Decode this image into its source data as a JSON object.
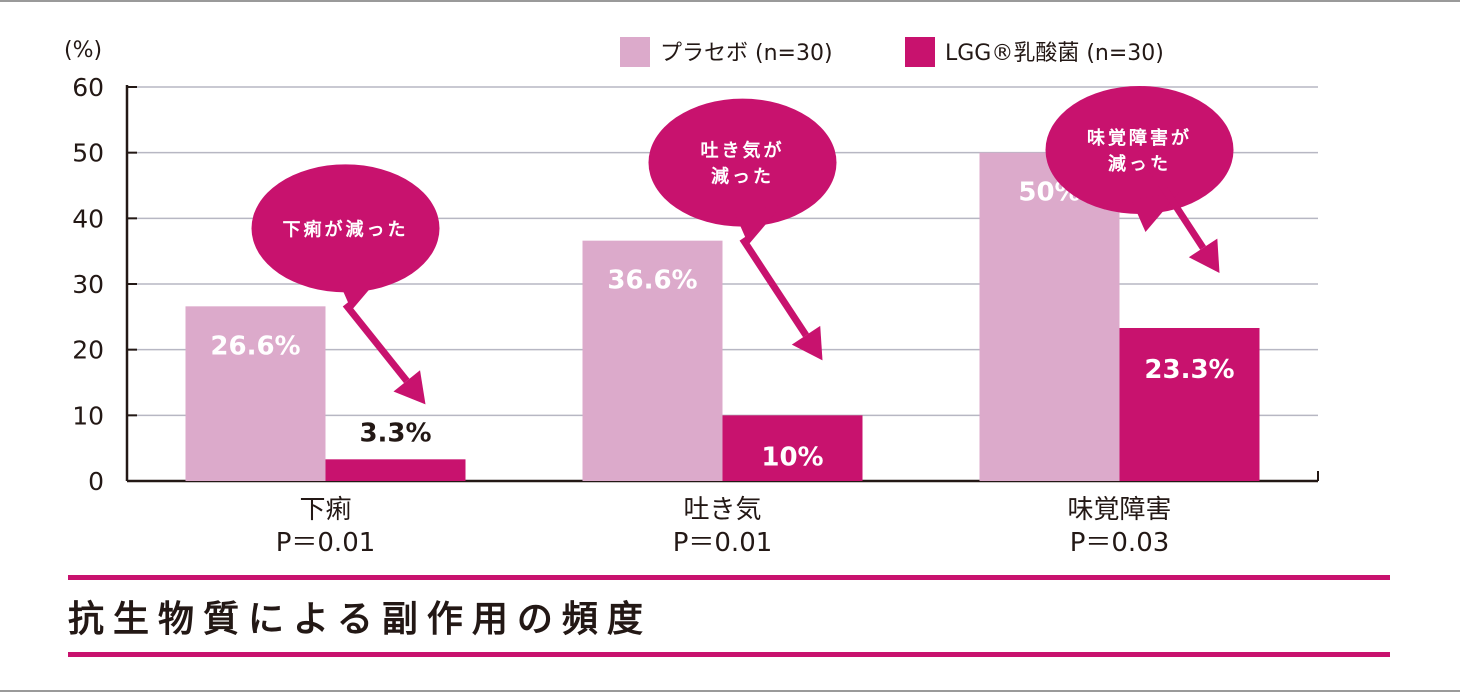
{
  "chart_data": {
    "type": "bar",
    "title": "抗生物質による副作用の頻度",
    "ylabel": "(%)",
    "xlabel": "",
    "ylim": [
      0,
      60
    ],
    "yticks": [
      0,
      10,
      20,
      30,
      40,
      50,
      60
    ],
    "grid": true,
    "legend_position": "top-right",
    "categories": [
      "下痢",
      "吐き気",
      "味覚障害"
    ],
    "p_values": [
      "P＝0.01",
      "P＝0.01",
      "P＝0.03"
    ],
    "series": [
      {
        "name": "プラセボ (n=30)",
        "color": "#dcaacb",
        "values": [
          26.6,
          36.6,
          50
        ],
        "labels": [
          "26.6%",
          "36.6%",
          "50%"
        ]
      },
      {
        "name": "LGG®乳酸菌 (n=30)",
        "color": "#c8126e",
        "values": [
          3.3,
          10,
          23.3
        ],
        "labels": [
          "3.3%",
          "10%",
          "23.3%"
        ]
      }
    ],
    "annotations": [
      {
        "category": "下痢",
        "text": "下痢が減った"
      },
      {
        "category": "吐き気",
        "text": "吐き気が減った"
      },
      {
        "category": "味覚障害",
        "text": "味覚障害が減った"
      }
    ]
  }
}
